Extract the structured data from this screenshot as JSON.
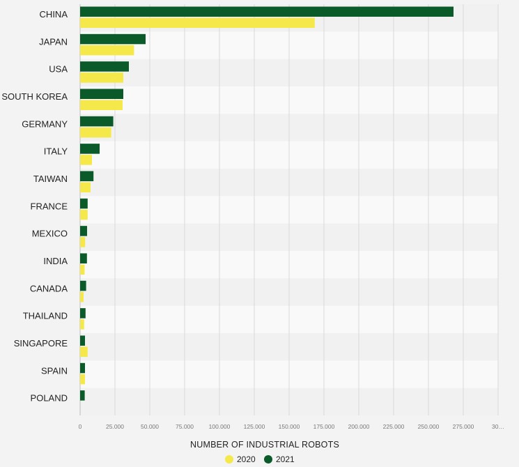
{
  "chart_data": {
    "type": "bar",
    "orientation": "horizontal",
    "categories": [
      "CHINA",
      "JAPAN",
      "USA",
      "SOUTH KOREA",
      "GERMANY",
      "ITALY",
      "TAIWAN",
      "FRANCE",
      "MEXICO",
      "INDIA",
      "CANADA",
      "THAILAND",
      "SINGAPORE",
      "SPAIN",
      "POLAND"
    ],
    "series": [
      {
        "name": "2021",
        "color": "#0a5a2a",
        "values": [
          268000,
          47000,
          35000,
          31000,
          23800,
          14000,
          9600,
          5400,
          5000,
          4900,
          4300,
          3900,
          3500,
          3500,
          3300
        ]
      },
      {
        "name": "2020",
        "color": "#f5e84a",
        "values": [
          168400,
          38700,
          31000,
          30500,
          22300,
          8500,
          7500,
          5400,
          3600,
          3200,
          2500,
          2900,
          5400,
          3500,
          0
        ]
      }
    ],
    "xlabel": "NUMBER OF INDUSTRIAL ROBOTS",
    "xlim": [
      0,
      300000
    ],
    "x_ticks": [
      "0",
      "25.000",
      "50.000",
      "75.000",
      "100.000",
      "125.000",
      "150.000",
      "175.000",
      "200.000",
      "225.000",
      "250.000",
      "275.000",
      "30…"
    ],
    "legend": [
      {
        "label": "2020",
        "color": "#f5e84a"
      },
      {
        "label": "2021",
        "color": "#0a5a2a"
      }
    ],
    "legend_position": "bottom",
    "grid": true
  }
}
